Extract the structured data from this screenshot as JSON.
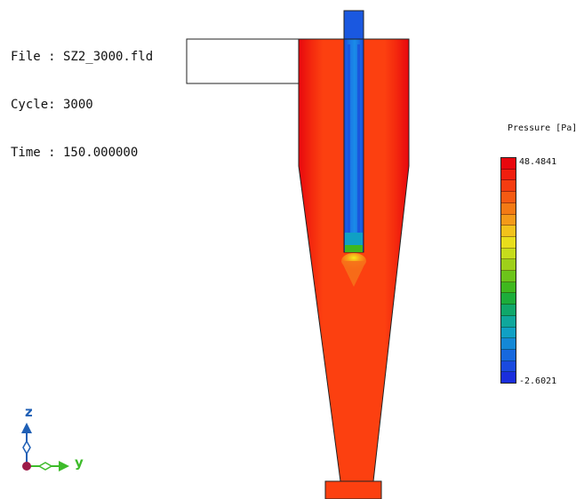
{
  "info": {
    "file_line": "File : SZ2_3000.fld",
    "cycle_line": "Cycle: 3000",
    "time_line": "Time : 150.000000"
  },
  "legend": {
    "title": "Pressure [Pa]",
    "max_label": "48.4841",
    "min_label": "-2.6021",
    "colors": [
      "#e8070e",
      "#f01e0e",
      "#f53c10",
      "#f55a12",
      "#f47a14",
      "#f49a18",
      "#f2c21b",
      "#e8de1c",
      "#c6dc1c",
      "#9ecf1a",
      "#6cc41a",
      "#3fb81e",
      "#1cad3a",
      "#10a76a",
      "#10a79c",
      "#10a0c4",
      "#1488d6",
      "#1668de",
      "#1a4adf",
      "#1a2edd"
    ]
  },
  "axes": {
    "z_label": "z",
    "y_label": "y",
    "z_color": "#1f5fb5",
    "y_color": "#3dbb2a"
  },
  "colors": {
    "high": "#e8070e",
    "fluid": "#fc4010",
    "pipe": "#1a58e0",
    "pipe_core": "#1a90e8"
  }
}
